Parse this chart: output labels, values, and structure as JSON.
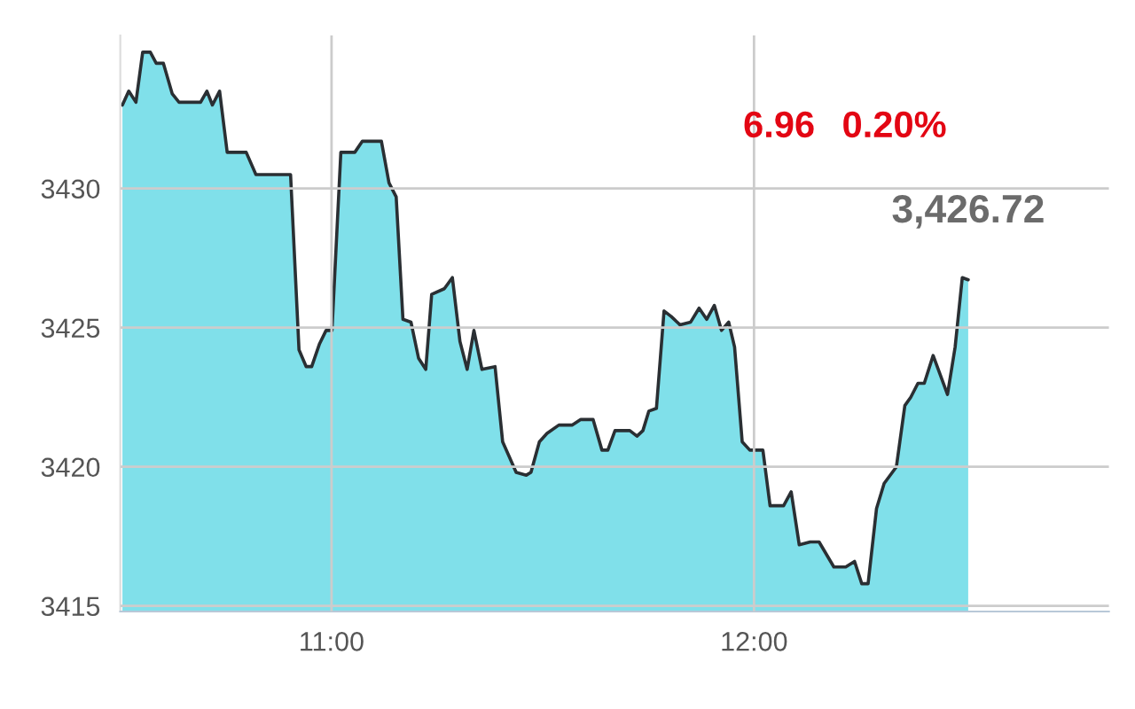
{
  "chart_data": {
    "type": "area",
    "xlim": [
      10.5,
      12.84
    ],
    "xticks": [
      {
        "value": 11,
        "label": "11:00"
      },
      {
        "value": 12,
        "label": "12:00"
      }
    ],
    "ylim": [
      3414.8,
      3435.5
    ],
    "yticks": [
      3415,
      3420,
      3425,
      3430
    ],
    "grid": true,
    "legend": false,
    "marker": "none",
    "line_style": "solid",
    "annotations": [
      "6.96",
      "0.20%",
      {
        "text": "3,426.72",
        "x": 12.507,
        "y": 3426.72
      }
    ],
    "series": [
      {
        "color": "#80e0ea",
        "x": [
          10.505,
          10.52,
          10.537,
          10.553,
          10.571,
          10.585,
          10.602,
          10.623,
          10.639,
          10.69,
          10.705,
          10.718,
          10.735,
          10.753,
          10.798,
          10.821,
          10.903,
          10.923,
          10.94,
          10.953,
          10.971,
          10.987,
          11.001,
          11.022,
          11.055,
          11.073,
          11.118,
          11.136,
          11.153,
          11.169,
          11.188,
          11.206,
          11.223,
          11.237,
          11.267,
          11.286,
          11.304,
          11.321,
          11.337,
          11.356,
          11.387,
          11.405,
          11.437,
          11.461,
          11.472,
          11.492,
          11.51,
          11.538,
          11.57,
          11.59,
          11.619,
          11.64,
          11.654,
          11.671,
          11.706,
          11.723,
          11.737,
          11.751,
          11.769,
          11.787,
          11.804,
          11.825,
          11.85,
          11.87,
          11.888,
          11.906,
          11.923,
          11.94,
          11.954,
          11.972,
          11.99,
          12.021,
          12.038,
          12.07,
          12.088,
          12.107,
          12.133,
          12.154,
          12.189,
          12.217,
          12.238,
          12.255,
          12.27,
          12.29,
          12.308,
          12.337,
          12.357,
          12.371,
          12.388,
          12.403,
          12.424,
          12.458,
          12.476,
          12.493,
          12.507
        ],
        "values": [
          3433.0,
          3433.5,
          3433.1,
          3434.9,
          3434.9,
          3434.5,
          3434.5,
          3433.4,
          3433.1,
          3433.1,
          3433.5,
          3433.0,
          3433.5,
          3431.3,
          3431.3,
          3430.5,
          3430.5,
          3424.2,
          3423.6,
          3423.6,
          3424.4,
          3424.9,
          3424.9,
          3431.3,
          3431.3,
          3431.7,
          3431.7,
          3430.2,
          3429.7,
          3425.3,
          3425.2,
          3423.9,
          3423.5,
          3426.2,
          3426.4,
          3426.8,
          3424.5,
          3423.5,
          3424.9,
          3423.5,
          3423.6,
          3420.9,
          3419.8,
          3419.7,
          3419.8,
          3420.9,
          3421.2,
          3421.5,
          3421.5,
          3421.7,
          3421.7,
          3420.6,
          3420.6,
          3421.3,
          3421.3,
          3421.1,
          3421.3,
          3422.0,
          3422.1,
          3425.6,
          3425.4,
          3425.1,
          3425.2,
          3425.7,
          3425.3,
          3425.8,
          3424.9,
          3425.2,
          3424.3,
          3420.9,
          3420.6,
          3420.6,
          3418.6,
          3418.6,
          3419.1,
          3417.2,
          3417.3,
          3417.3,
          3416.4,
          3416.4,
          3416.6,
          3415.8,
          3415.8,
          3418.5,
          3419.4,
          3420.0,
          3422.2,
          3422.5,
          3423.0,
          3423.0,
          3424.0,
          3422.6,
          3424.3,
          3426.8,
          3426.72
        ]
      }
    ]
  }
}
